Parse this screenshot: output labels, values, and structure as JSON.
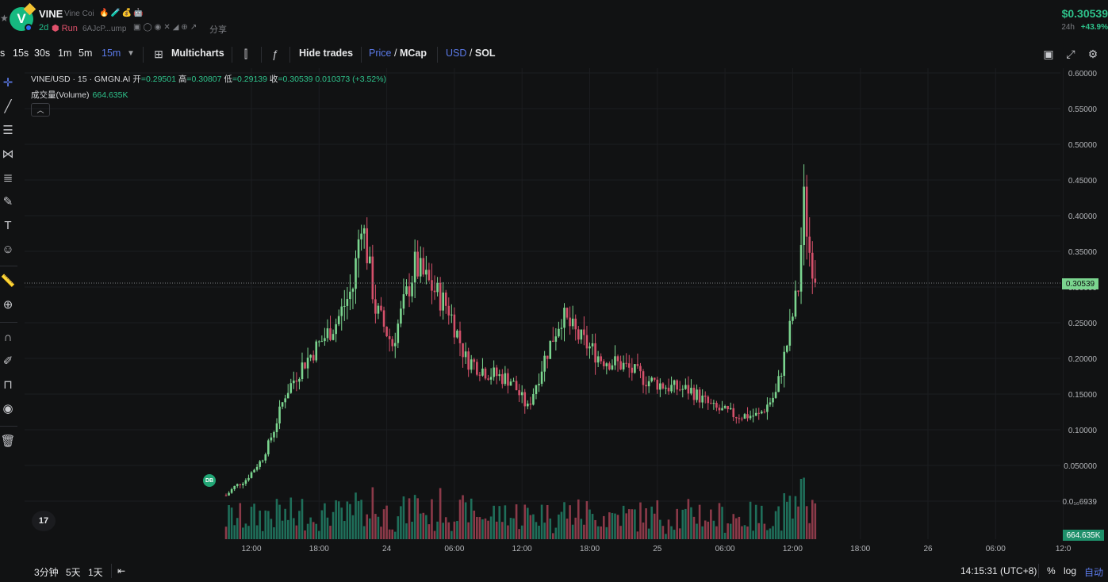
{
  "header": {
    "symbol": "VINE",
    "name": "Vine Coi",
    "name_icons": "🔥🧪💰🤖",
    "age": "2d",
    "run_label": "Run",
    "address": "6AJcP...ump",
    "share_label": "分享",
    "price": "$0.30539",
    "period": "24h",
    "change": "+43.9%"
  },
  "toolbar": {
    "tf_partial": "s",
    "timeframes": [
      "15s",
      "30s",
      "1m",
      "5m",
      "15m"
    ],
    "active_timeframe": "15m",
    "multicharts_label": "Multicharts",
    "hide_trades_label": "Hide trades",
    "price_label": "Price",
    "mcap_label": "MCap",
    "usd_label": "USD",
    "sol_label": "SOL"
  },
  "legend": {
    "pair_line": "VINE/USD · 15 · GMGN.AI",
    "open_label": "开",
    "open": "=0.29501",
    "high_label": "高",
    "high": "=0.30807",
    "low_label": "低",
    "low": "=0.29139",
    "close_label": "收",
    "close": "=0.30539",
    "change": "0.010373 (+3.52%)",
    "volume_label": "成交量(Volume)",
    "volume_value": "664.635K"
  },
  "markers": {
    "db_label": "DB",
    "tv_logo": "17",
    "last_price": "0.30539",
    "last_volume": "664.635K"
  },
  "bottom": {
    "ranges": [
      "3分钟",
      "5天",
      "1天"
    ],
    "time": "14:15:31 (UTC+8)",
    "percent_label": "%",
    "log_label": "log",
    "auto_label": "自动"
  },
  "colors": {
    "up": "#26a69a",
    "up_candle": "#7bd58f",
    "down": "#ef5370",
    "down_candle": "#d4506a",
    "accent_blue": "#5b7ae9",
    "green_text": "#2ec28b"
  },
  "chart_data": {
    "type": "candlestick",
    "title": "VINE/USD · 15 · GMGN.AI",
    "y_ticks": [
      "0.60000",
      "0.55000",
      "0.50000",
      "0.45000",
      "0.40000",
      "0.35000",
      "0.30000",
      "0.25000",
      "0.20000",
      "0.15000",
      "0.10000",
      "0.050000",
      "0.0₁₆6939"
    ],
    "ylim": [
      0.0,
      0.6
    ],
    "x_ticks": [
      "12:00",
      "18:00",
      "24",
      "06:00",
      "12:00",
      "18:00",
      "25",
      "06:00",
      "12:00",
      "18:00",
      "26",
      "06:00",
      "12:0"
    ],
    "price_path": [
      {
        "t": "23 09:45",
        "v": 0.008
      },
      {
        "t": "23 10:30",
        "v": 0.02
      },
      {
        "t": "23 11:30",
        "v": 0.03
      },
      {
        "t": "23 13:00",
        "v": 0.06
      },
      {
        "t": "23 14:00",
        "v": 0.1
      },
      {
        "t": "23 15:00",
        "v": 0.15
      },
      {
        "t": "23 16:30",
        "v": 0.19
      },
      {
        "t": "23 18:00",
        "v": 0.22
      },
      {
        "t": "23 19:30",
        "v": 0.25
      },
      {
        "t": "23 21:00",
        "v": 0.3
      },
      {
        "t": "23 21:45",
        "v": 0.4
      },
      {
        "t": "23 23:00",
        "v": 0.27
      },
      {
        "t": "24 00:30",
        "v": 0.22
      },
      {
        "t": "24 02:30",
        "v": 0.33
      },
      {
        "t": "24 04:00",
        "v": 0.3
      },
      {
        "t": "24 05:30",
        "v": 0.27
      },
      {
        "t": "24 07:00",
        "v": 0.2
      },
      {
        "t": "24 09:00",
        "v": 0.18
      },
      {
        "t": "24 11:00",
        "v": 0.17
      },
      {
        "t": "24 12:30",
        "v": 0.13
      },
      {
        "t": "24 14:00",
        "v": 0.2
      },
      {
        "t": "24 15:30",
        "v": 0.26
      },
      {
        "t": "24 17:00",
        "v": 0.23
      },
      {
        "t": "24 19:00",
        "v": 0.2
      },
      {
        "t": "24 21:00",
        "v": 0.19
      },
      {
        "t": "24 23:00",
        "v": 0.17
      },
      {
        "t": "25 01:00",
        "v": 0.16
      },
      {
        "t": "25 03:00",
        "v": 0.155
      },
      {
        "t": "25 05:00",
        "v": 0.13
      },
      {
        "t": "25 07:00",
        "v": 0.12
      },
      {
        "t": "25 09:00",
        "v": 0.12
      },
      {
        "t": "25 10:30",
        "v": 0.15
      },
      {
        "t": "25 11:30",
        "v": 0.22
      },
      {
        "t": "25 12:30",
        "v": 0.3
      },
      {
        "t": "25 13:00",
        "v": 0.42
      },
      {
        "t": "25 13:30",
        "v": 0.35
      },
      {
        "t": "25 14:15",
        "v": 0.305
      }
    ]
  }
}
